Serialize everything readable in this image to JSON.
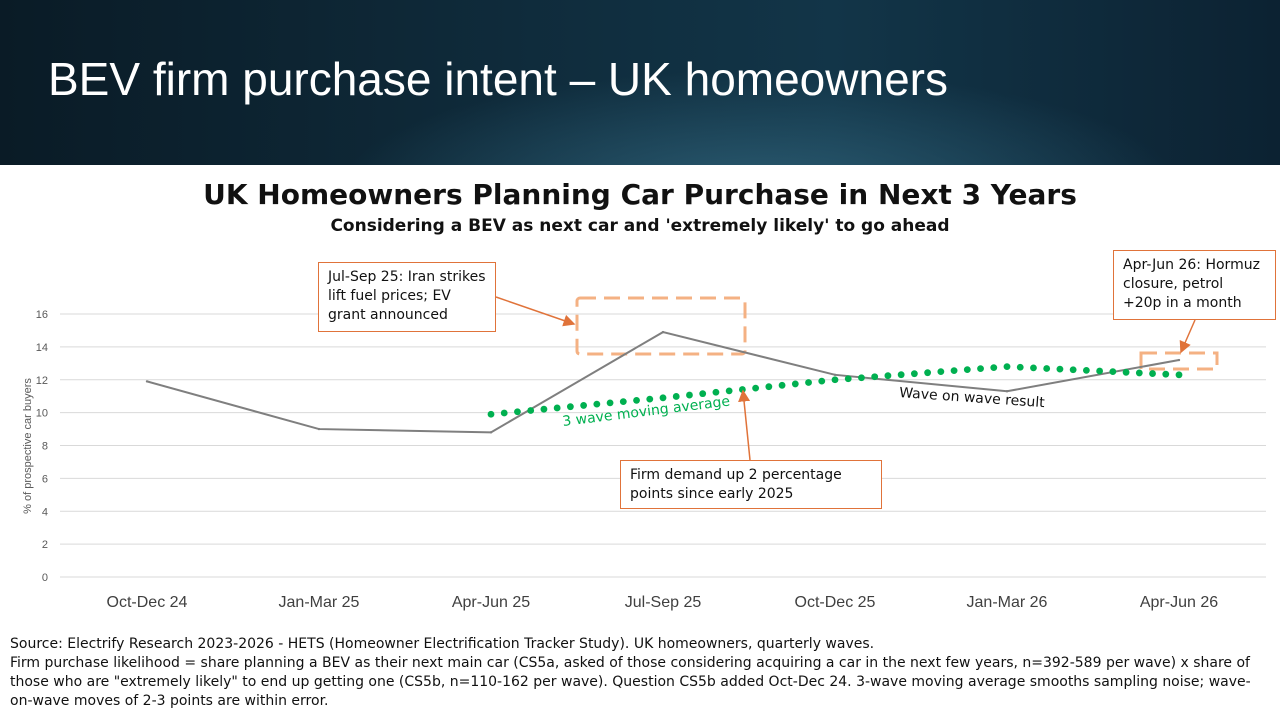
{
  "slide_title": "BEV firm purchase intent – UK homeowners",
  "chart_data": {
    "type": "line",
    "title": "UK Homeowners Planning Car Purchase in Next 3 Years",
    "subtitle": "Considering a BEV as next car and 'extremely likely' to go ahead",
    "ylabel": "% of prospective car buyers",
    "xlabel": "",
    "ylim": [
      0,
      16
    ],
    "yticks": [
      0,
      2,
      4,
      6,
      8,
      10,
      12,
      14,
      16
    ],
    "categories": [
      "Oct-Dec 24",
      "Jan-Mar 25",
      "Apr-Jun 25",
      "Jul-Sep 25",
      "Oct-Dec 25",
      "Jan-Mar 26",
      "Apr-Jun 26"
    ],
    "grid": true,
    "series": [
      {
        "name": "Wave on wave result",
        "style": "solid",
        "color": "#7f7f7f",
        "values": [
          11.9,
          9.0,
          8.8,
          14.9,
          12.3,
          11.3,
          13.2
        ]
      },
      {
        "name": "3 wave moving average",
        "style": "dotted",
        "color": "#00b050",
        "values": [
          null,
          null,
          9.9,
          10.9,
          12.0,
          12.8,
          12.3
        ]
      }
    ],
    "annotations": [
      "Jul-Sep 25: Iran strikes lift fuel prices; EV grant announced",
      "Apr-Jun 26: Hormuz closure, petrol +20p in a month",
      "Firm demand up 2 percentage points since early 2025"
    ]
  },
  "callouts": {
    "jul_sep": "Jul-Sep 25: Iran strikes lift fuel prices; EV grant announced",
    "apr_jun": "Apr-Jun 26: Hormuz closure, petrol +20p in a month",
    "firm": "Firm demand up 2 percentage points since early 2025"
  },
  "colors": {
    "accent": "#e0733a",
    "moving_average": "#00b050",
    "line": "#7f7f7f"
  },
  "footer": {
    "source": "Source: Electrify Research 2023-2026 - HETS (Homeowner Electrification Tracker Study). UK homeowners, quarterly waves.",
    "note": "Firm purchase likelihood = share planning a BEV as their next main car (CS5a, asked of those considering acquiring a car in the next few years, n=392-589 per wave) x share of those who are \"extremely likely\" to end up getting one (CS5b, n=110-162 per wave). Question CS5b added Oct-Dec 24. 3-wave moving average smooths sampling noise; wave-on-wave moves of 2-3 points are within error."
  }
}
